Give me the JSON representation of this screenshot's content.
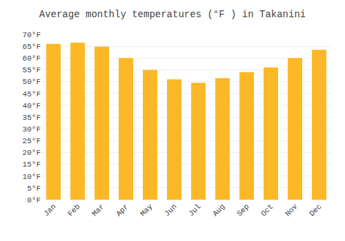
{
  "chart_data": {
    "type": "bar",
    "title": "Average monthly temperatures (°F ) in Takanini",
    "categories": [
      "Jan",
      "Feb",
      "Mar",
      "Apr",
      "May",
      "Jun",
      "Jul",
      "Aug",
      "Sep",
      "Oct",
      "Nov",
      "Dec"
    ],
    "values": [
      66.0,
      66.5,
      64.8,
      60.0,
      55.0,
      51.0,
      49.5,
      51.5,
      54.0,
      56.0,
      60.0,
      63.5
    ],
    "color": "#FDB827",
    "ylim": [
      0,
      70
    ],
    "yticks": [
      {
        "value": 0,
        "label": "0°F"
      },
      {
        "value": 5,
        "label": "5°F"
      },
      {
        "value": 10,
        "label": "10°F"
      },
      {
        "value": 15,
        "label": "15°F"
      },
      {
        "value": 20,
        "label": "20°F"
      },
      {
        "value": 25,
        "label": "25°F"
      },
      {
        "value": 30,
        "label": "30°F"
      },
      {
        "value": 35,
        "label": "35°F"
      },
      {
        "value": 40,
        "label": "40°F"
      },
      {
        "value": 45,
        "label": "45°F"
      },
      {
        "value": 50,
        "label": "50°F"
      },
      {
        "value": 55,
        "label": "55°F"
      },
      {
        "value": 60,
        "label": "60°F"
      },
      {
        "value": 65,
        "label": "65°F"
      },
      {
        "value": 70,
        "label": "70°F"
      }
    ],
    "grid": true
  }
}
